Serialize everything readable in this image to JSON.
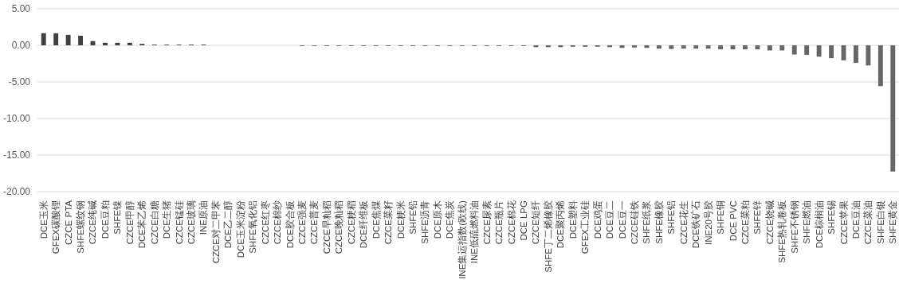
{
  "chart_data": {
    "type": "bar",
    "categories": [
      "DCE玉米",
      "GFEX碳酸锂",
      "CZCE PTA",
      "SHFE螺纹钢",
      "CZCE纯碱",
      "DCE豆粕",
      "SHFE镍",
      "CZCE甲醇",
      "DCE苯乙烯",
      "CZCE白糖",
      "DCE生猪",
      "CZCE锰硅",
      "CZCE玻璃",
      "INE原油",
      "CZCE对二甲苯",
      "DCE乙二醇",
      "DCE玉米淀粉",
      "SHFE氧化铝",
      "CZCE红枣",
      "CZCE棉纱",
      "DCE胶合板",
      "CZCE强麦",
      "CZCE普麦",
      "CZCE早籼稻",
      "CZCE晚籼稻",
      "CZCE粳稻",
      "DCE纤维板",
      "DCE焦煤",
      "CZCE菜籽",
      "DCE粳米",
      "SHFE铅",
      "SHFE沥青",
      "DCE原木",
      "DCE焦炭",
      "INE集运指数(欧线)",
      "INE低硫燃料油",
      "CZCE尿素",
      "CZCE瓶片",
      "CZCE棉花",
      "DCE LPG",
      "CZCE短纤",
      "SHFE丁二烯橡胶",
      "DCE聚丙烯",
      "DCE塑料",
      "GFEX工业硅",
      "DCE鸡蛋",
      "DCE豆二",
      "DCE豆一",
      "CZCE硅铁",
      "SHFE纸浆",
      "SHFE橡胶",
      "SHFE铝",
      "CZCE花生",
      "DCE铁矿石",
      "INE20号胶",
      "SHFE铜",
      "DCE PVC",
      "CZCE菜粕",
      "SHFE锌",
      "CZCE烧碱",
      "SHFE热轧卷板",
      "SHFE不锈钢",
      "SHFE燃油",
      "DCE棕榈油",
      "SHFE锡",
      "CZCE苹果",
      "DCE豆油",
      "CZCE菜油",
      "SHFE白银",
      "SHFE黄金"
    ],
    "values": [
      1.66,
      1.65,
      1.43,
      1.31,
      0.58,
      0.35,
      0.35,
      0.35,
      0.2,
      0.1,
      0.1,
      0.1,
      0.1,
      0.1,
      null,
      null,
      null,
      null,
      null,
      null,
      null,
      -0.1,
      -0.1,
      -0.1,
      -0.1,
      -0.1,
      -0.1,
      -0.1,
      -0.1,
      -0.1,
      -0.1,
      -0.1,
      -0.1,
      -0.1,
      -0.1,
      -0.1,
      -0.1,
      -0.1,
      -0.1,
      -0.1,
      -0.25,
      -0.25,
      -0.25,
      -0.2,
      -0.2,
      -0.2,
      -0.25,
      -0.35,
      -0.3,
      -0.35,
      -0.45,
      -0.5,
      -0.45,
      -0.45,
      -0.45,
      -0.55,
      -0.55,
      -0.55,
      -0.55,
      -0.7,
      -0.7,
      -1.25,
      -1.3,
      -1.55,
      -1.75,
      -2.05,
      -2.4,
      -2.75,
      -5.58,
      -17.25
    ],
    "colors": [
      "#404040",
      "#404040",
      "#404040",
      "#404040",
      "#404040",
      "#404040",
      "#404040",
      "#404040",
      "#404040",
      "#404040",
      "#404040",
      "#404040",
      "#404040",
      "#404040",
      null,
      null,
      null,
      null,
      null,
      null,
      null,
      "#666666",
      "#666666",
      "#666666",
      "#666666",
      "#666666",
      "#666666",
      "#666666",
      "#666666",
      "#666666",
      "#666666",
      "#666666",
      "#666666",
      "#666666",
      "#666666",
      "#666666",
      "#666666",
      "#666666",
      "#666666",
      "#666666",
      "#666666",
      "#666666",
      "#666666",
      "#666666",
      "#666666",
      "#666666",
      "#666666",
      "#666666",
      "#666666",
      "#666666",
      "#666666",
      "#666666",
      "#666666",
      "#666666",
      "#666666",
      "#666666",
      "#666666",
      "#666666",
      "#666666",
      "#666666",
      "#666666",
      "#666666",
      "#666666",
      "#666666",
      "#666666",
      "#666666",
      "#666666",
      "#666666",
      "#666666",
      "#666666"
    ],
    "ylim": [
      -20,
      5
    ],
    "yticks": [
      {
        "value": 5,
        "label": "5.00"
      },
      {
        "value": 0,
        "label": "0.00"
      },
      {
        "value": -5,
        "label": "-5.00"
      },
      {
        "value": -10,
        "label": "-10.00"
      },
      {
        "value": -15,
        "label": "-15.00"
      },
      {
        "value": -20,
        "label": "-20.00"
      }
    ],
    "grid": "y"
  }
}
